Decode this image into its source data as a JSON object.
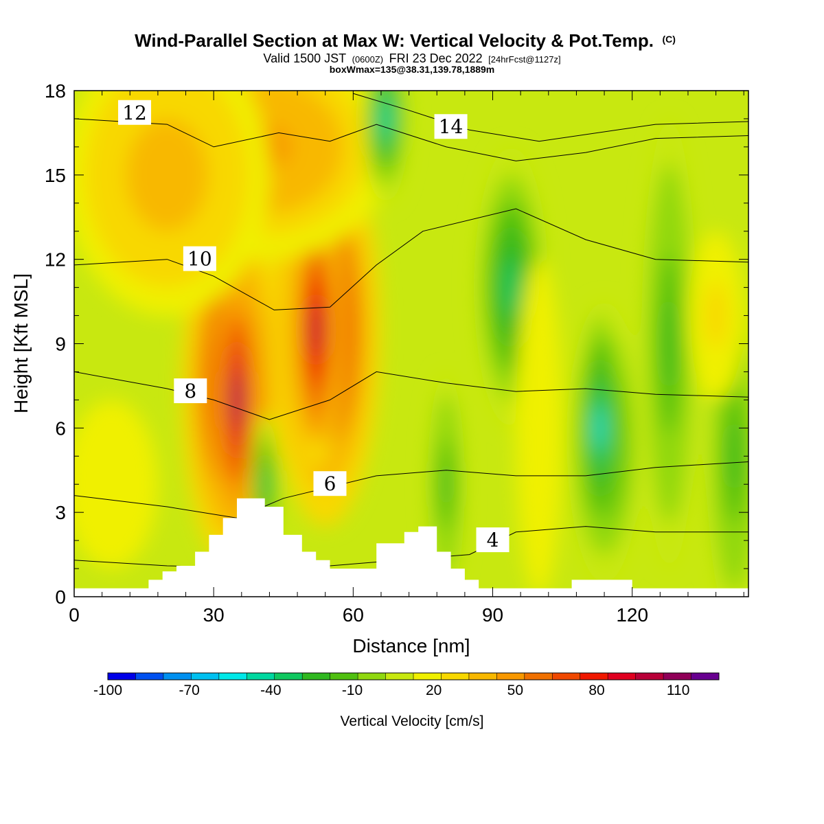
{
  "header": {
    "title": "Wind-Parallel Section at Max W: Vertical Velocity & Pot.Temp.",
    "copyright": "(C)",
    "valid_a": "Valid 1500 JST",
    "valid_b": "(0600Z)",
    "valid_c": "FRI 23 Dec 2022",
    "valid_d": "[24hrFcst@1127z]",
    "boxwmax": "boxWmax=135@38.31,139.78,1889m"
  },
  "chart_data": {
    "type": "heatmap",
    "xlabel": "Distance [nm]",
    "ylabel": "Height [Kft MSL]",
    "xlim": [
      0,
      145
    ],
    "ylim": [
      0,
      18
    ],
    "x_ticks": [
      "0",
      "30",
      "60",
      "90",
      "120"
    ],
    "y_ticks": [
      "0",
      "3",
      "6",
      "9",
      "12",
      "15",
      "18"
    ],
    "colorbar": {
      "label": "Vertical Velocity [cm/s]",
      "tick_labels": [
        "-100",
        "-70",
        "-40",
        "-10",
        "20",
        "50",
        "80",
        "110"
      ],
      "levels": [
        -100,
        125
      ],
      "colors": [
        "#0000e8",
        "#0050f0",
        "#0090f0",
        "#00c0f0",
        "#00e8e8",
        "#00d8a0",
        "#10c860",
        "#30b820",
        "#50c010",
        "#90d810",
        "#c8e810",
        "#f0f000",
        "#f8d800",
        "#f8b800",
        "#f89800",
        "#f07000",
        "#f04800",
        "#f01800",
        "#e00020",
        "#b80038",
        "#900058",
        "#680090"
      ]
    },
    "terrain": [
      [
        0,
        0.3
      ],
      [
        16,
        0.3
      ],
      [
        16,
        0.6
      ],
      [
        19,
        0.6
      ],
      [
        19,
        0.9
      ],
      [
        22,
        0.9
      ],
      [
        22,
        1.1
      ],
      [
        26,
        1.1
      ],
      [
        26,
        1.6
      ],
      [
        29,
        1.6
      ],
      [
        29,
        2.2
      ],
      [
        32,
        2.2
      ],
      [
        32,
        2.8
      ],
      [
        35,
        2.8
      ],
      [
        35,
        3.5
      ],
      [
        41,
        3.5
      ],
      [
        41,
        3.2
      ],
      [
        45,
        3.2
      ],
      [
        45,
        2.2
      ],
      [
        49,
        2.2
      ],
      [
        49,
        1.6
      ],
      [
        52,
        1.6
      ],
      [
        52,
        1.3
      ],
      [
        55,
        1.3
      ],
      [
        55,
        1.0
      ],
      [
        65,
        1.0
      ],
      [
        65,
        1.9
      ],
      [
        71,
        1.9
      ],
      [
        71,
        2.3
      ],
      [
        74,
        2.3
      ],
      [
        74,
        2.5
      ],
      [
        78,
        2.5
      ],
      [
        78,
        1.6
      ],
      [
        81,
        1.6
      ],
      [
        81,
        1.0
      ],
      [
        84,
        1.0
      ],
      [
        84,
        0.6
      ],
      [
        87,
        0.6
      ],
      [
        87,
        0.3
      ],
      [
        107,
        0.3
      ],
      [
        107,
        0.6
      ],
      [
        120,
        0.6
      ],
      [
        120,
        0.3
      ],
      [
        145,
        0.3
      ]
    ],
    "w_features": [
      {
        "x": 34,
        "y": 7.5,
        "rx": 11,
        "ry": 6.5,
        "w": 80
      },
      {
        "x": 35,
        "y": 7.0,
        "rx": 4.5,
        "ry": 5.0,
        "w": 110
      },
      {
        "x": 54,
        "y": 9.5,
        "rx": 12,
        "ry": 7.0,
        "w": 85
      },
      {
        "x": 52,
        "y": 9.5,
        "rx": 5.5,
        "ry": 5.0,
        "w": 95
      },
      {
        "x": 41,
        "y": 16,
        "rx": 28,
        "ry": 4,
        "w": 45
      },
      {
        "x": 41,
        "y": 4.0,
        "rx": 3,
        "ry": 2.5,
        "w": -30
      },
      {
        "x": 67,
        "y": 17,
        "rx": 5,
        "ry": 3,
        "w": -40
      },
      {
        "x": 94,
        "y": 11,
        "rx": 8,
        "ry": 5,
        "w": -30
      },
      {
        "x": 114,
        "y": 5.5,
        "rx": 8,
        "ry": 5,
        "w": -40
      },
      {
        "x": 113,
        "y": 6,
        "rx": 4,
        "ry": 4,
        "w": -50
      },
      {
        "x": 128,
        "y": 9,
        "rx": 6,
        "ry": 8,
        "w": -20
      },
      {
        "x": 142,
        "y": 5,
        "rx": 6,
        "ry": 6,
        "w": -20
      },
      {
        "x": 100,
        "y": 6,
        "rx": 5,
        "ry": 6,
        "w": 22
      },
      {
        "x": 138,
        "y": 10,
        "rx": 6,
        "ry": 3,
        "w": 25
      },
      {
        "x": 80,
        "y": 4,
        "rx": 4,
        "ry": 4,
        "w": -20
      },
      {
        "x": 20,
        "y": 15,
        "rx": 22,
        "ry": 5,
        "w": 40
      },
      {
        "x": 8,
        "y": 4,
        "rx": 10,
        "ry": 3,
        "w": 15
      }
    ],
    "theta_contours": [
      {
        "label": "4",
        "lx": 90,
        "ly": 2.0,
        "pts": [
          [
            0,
            1.3
          ],
          [
            20,
            1.1
          ],
          [
            45,
            1.0
          ],
          [
            55,
            1.1
          ],
          [
            70,
            1.3
          ],
          [
            85,
            1.5
          ],
          [
            95,
            2.3
          ],
          [
            110,
            2.5
          ],
          [
            125,
            2.3
          ],
          [
            145,
            2.3
          ]
        ]
      },
      {
        "label": "6",
        "lx": 55,
        "ly": 4.0,
        "pts": [
          [
            0,
            3.6
          ],
          [
            20,
            3.2
          ],
          [
            35,
            2.8
          ],
          [
            45,
            3.5
          ],
          [
            55,
            3.9
          ],
          [
            65,
            4.3
          ],
          [
            80,
            4.5
          ],
          [
            95,
            4.3
          ],
          [
            110,
            4.3
          ],
          [
            125,
            4.6
          ],
          [
            145,
            4.8
          ]
        ]
      },
      {
        "label": "8",
        "lx": 25,
        "ly": 7.3,
        "pts": [
          [
            0,
            8.0
          ],
          [
            20,
            7.4
          ],
          [
            30,
            7.0
          ],
          [
            42,
            6.3
          ],
          [
            55,
            7.0
          ],
          [
            65,
            8.0
          ],
          [
            80,
            7.6
          ],
          [
            95,
            7.3
          ],
          [
            110,
            7.4
          ],
          [
            125,
            7.2
          ],
          [
            145,
            7.1
          ]
        ]
      },
      {
        "label": "10",
        "lx": 27,
        "ly": 12.0,
        "pts": [
          [
            0,
            11.8
          ],
          [
            20,
            12.0
          ],
          [
            30,
            11.4
          ],
          [
            43,
            10.2
          ],
          [
            55,
            10.3
          ],
          [
            65,
            11.8
          ],
          [
            75,
            13.0
          ],
          [
            95,
            13.8
          ],
          [
            110,
            12.7
          ],
          [
            125,
            12.0
          ],
          [
            145,
            11.9
          ]
        ]
      },
      {
        "label": "12",
        "lx": 13,
        "ly": 17.2,
        "pts": [
          [
            0,
            17.0
          ],
          [
            20,
            16.8
          ],
          [
            30,
            16.0
          ],
          [
            44,
            16.5
          ],
          [
            55,
            16.2
          ],
          [
            65,
            16.8
          ],
          [
            80,
            16.0
          ],
          [
            95,
            15.5
          ],
          [
            110,
            15.8
          ],
          [
            125,
            16.3
          ],
          [
            145,
            16.4
          ]
        ]
      },
      {
        "label": "14",
        "lx": 81,
        "ly": 16.7,
        "pts": [
          [
            60,
            17.9
          ],
          [
            72,
            17.3
          ],
          [
            85,
            16.6
          ],
          [
            100,
            16.2
          ],
          [
            125,
            16.8
          ],
          [
            145,
            16.9
          ]
        ]
      }
    ]
  }
}
